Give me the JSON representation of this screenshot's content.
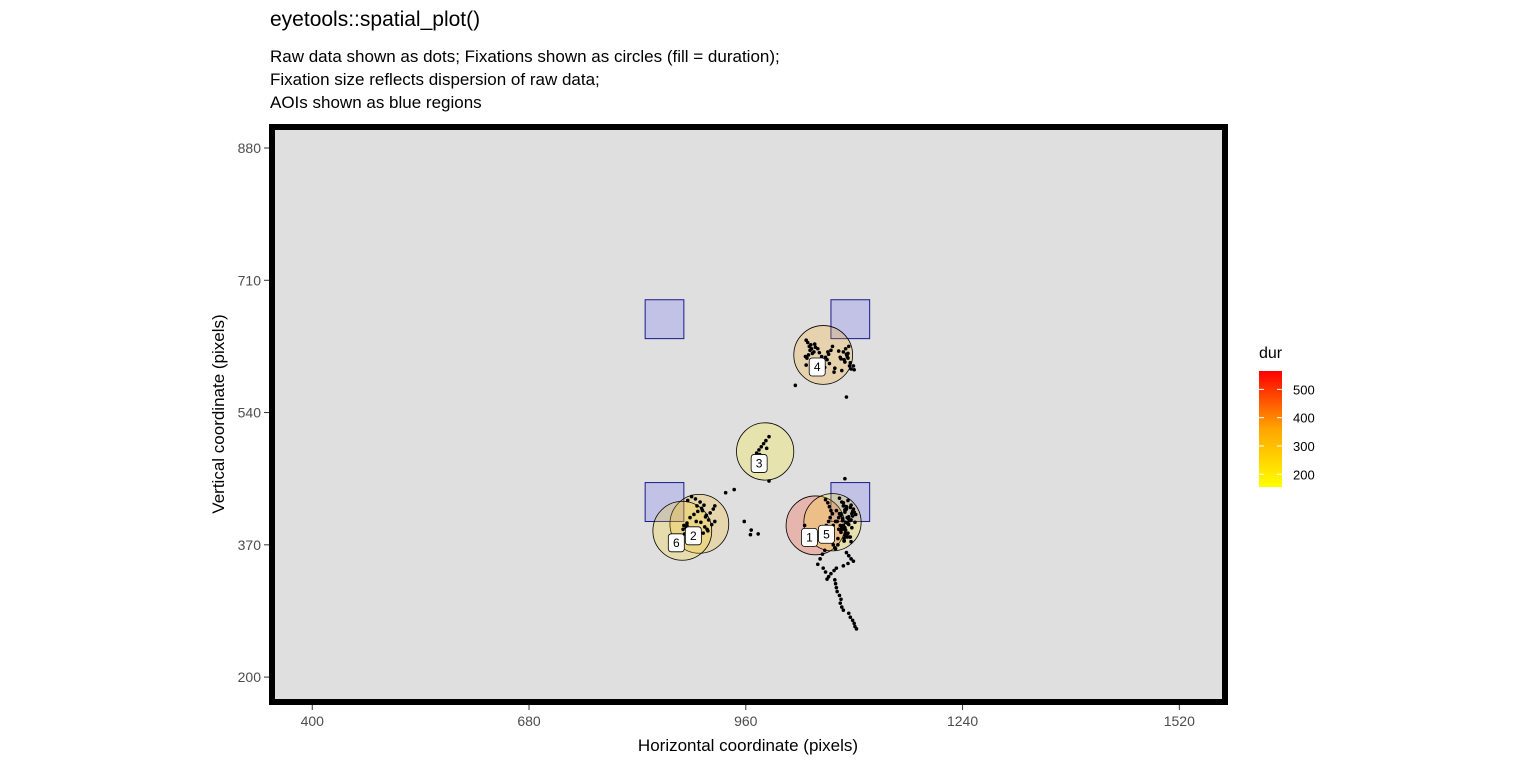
{
  "chart_data": {
    "type": "scatter",
    "title": "eyetools::spatial_plot()",
    "subtitle": [
      "Raw data shown as dots; Fixations shown as circles (fill = duration);",
      "Fixation size reflects dispersion of raw data;",
      "AOIs shown as blue regions"
    ],
    "xlabel": "Horizontal coordinate (pixels)",
    "ylabel": "Vertical coordinate (pixels)",
    "xlim": [
      348,
      1579
    ],
    "ylim": [
      168,
      907
    ],
    "xticks": [
      400,
      680,
      960,
      1240,
      1520
    ],
    "yticks": [
      200,
      370,
      540,
      710,
      880
    ],
    "grid": false,
    "legend": {
      "title": "dur",
      "position": "right",
      "type": "colorbar",
      "ticks": [
        200,
        300,
        400,
        500
      ],
      "range": [
        155,
        565
      ],
      "low_color": "#FFFF00",
      "high_color": "#FF0000"
    },
    "aois": [
      {
        "x": [
          830,
          880
        ],
        "y": [
          635,
          685
        ]
      },
      {
        "x": [
          1070,
          1120
        ],
        "y": [
          635,
          685
        ]
      },
      {
        "x": [
          830,
          880
        ],
        "y": [
          400,
          450
        ]
      },
      {
        "x": [
          1070,
          1120
        ],
        "y": [
          400,
          450
        ]
      }
    ],
    "fixations": [
      {
        "id": 1,
        "x": 1050,
        "y": 395,
        "radius": 38,
        "dur": 520
      },
      {
        "id": 2,
        "x": 900,
        "y": 397,
        "radius": 38,
        "dur": 320
      },
      {
        "id": 3,
        "x": 985,
        "y": 490,
        "radius": 37,
        "dur": 190
      },
      {
        "id": 4,
        "x": 1060,
        "y": 614,
        "radius": 38,
        "dur": 350
      },
      {
        "id": 5,
        "x": 1072,
        "y": 399,
        "radius": 37,
        "dur": 230
      },
      {
        "id": 6,
        "x": 878,
        "y": 388,
        "radius": 38,
        "dur": 260
      }
    ],
    "raw_points": {
      "x": [
        1040,
        1042,
        1045,
        1038,
        1044,
        1048,
        1041,
        1039,
        1046,
        1043,
        1050,
        1037,
        1052,
        1047,
        1049,
        1053,
        1055,
        1058,
        1060,
        1056,
        1062,
        1065,
        1063,
        1067,
        1070,
        1072,
        1068,
        1075,
        1074,
        1066,
        1090,
        1092,
        1088,
        1094,
        1091,
        1086,
        1089,
        1093,
        1095,
        1087,
        1099,
        1096,
        1084,
        1082,
        1080,
        1092,
        1083,
        1038,
        1044,
        1100,
        1083,
        1088,
        1090,
        1085,
        1095,
        1096,
        1097,
        1098,
        1093,
        1087,
        1089,
        1091,
        1100,
        1102,
        1094,
        1081,
        1077,
        1086,
        1092,
        1099,
        1091,
        1085,
        1086,
        1088,
        1093,
        1096,
        1098,
        1101,
        1097,
        1089,
        1092,
        1095,
        1087,
        1076,
        1073,
        1080,
        1083,
        1088,
        1091,
        1094,
        1096,
        1087,
        1079,
        1070,
        1082,
        1084,
        1086,
        1089,
        1093,
        1090,
        1063,
        1066,
        1068,
        1070,
        1072,
        1069,
        1067,
        1064,
        1061,
        1058,
        1065,
        1071,
        1073,
        1075,
        1062,
        1059,
        1056,
        1053,
        1060,
        1063,
        1081,
        1084,
        1086,
        1088,
        1083,
        1080,
        1078,
        1082,
        1085,
        1089,
        1091,
        1087,
        1079,
        1076,
        1090,
        1093,
        1096,
        1099,
        1092,
        1086,
        1077,
        1074,
        1070,
        1067,
        1065,
        1075,
        1076,
        1077,
        1078,
        1081,
        1083,
        1082,
        1084,
        1086,
        1093,
        1095,
        1098,
        1100,
        1101,
        1103,
        888,
        893,
        898,
        903,
        906,
        901,
        895,
        890,
        885,
        897,
        904,
        909,
        912,
        916,
        910,
        905,
        899,
        894,
        889,
        884,
        896,
        908,
        914,
        918,
        920,
        902,
        907,
        911,
        900,
        887,
        873,
        877,
        881,
        885,
        879,
        883,
        871,
        875,
        880,
        884,
        974,
        977,
        980,
        983,
        986,
        978,
        982,
        975,
        971,
        987,
        990,
        1024,
        1088,
        1090,
        958,
        1036,
        966,
        934,
        945,
        967,
        976,
        990,
        920
      ],
      "y": [
        630,
        625,
        622,
        633,
        627,
        618,
        614,
        610,
        616,
        620,
        624,
        612,
        607,
        603,
        628,
        622,
        617,
        612,
        605,
        600,
        598,
        608,
        611,
        615,
        620,
        625,
        603,
        597,
        592,
        618,
        615,
        610,
        605,
        600,
        612,
        618,
        622,
        625,
        604,
        608,
        600,
        596,
        594,
        611,
        619,
        616,
        609,
        601,
        603,
        595,
        408,
        412,
        416,
        404,
        418,
        421,
        410,
        413,
        406,
        420,
        415,
        405,
        412,
        409,
        401,
        410,
        414,
        424,
        427,
        416,
        398,
        401,
        395,
        392,
        396,
        402,
        407,
        399,
        392,
        389,
        385,
        380,
        378,
        400,
        395,
        390,
        386,
        382,
        384,
        380,
        374,
        375,
        378,
        383,
        389,
        392,
        395,
        399,
        403,
        419,
        428,
        424,
        419,
        414,
        410,
        405,
        400,
        395,
        390,
        387,
        381,
        375,
        370,
        366,
        363,
        358,
        352,
        345,
        340,
        335,
        430,
        425,
        420,
        415,
        410,
        405,
        400,
        395,
        390,
        385,
        380,
        375,
        370,
        365,
        360,
        356,
        352,
        349,
        346,
        343,
        340,
        337,
        333,
        329,
        326,
        325,
        320,
        315,
        310,
        305,
        300,
        295,
        290,
        286,
        282,
        277,
        273,
        269,
        265,
        262,
        405,
        409,
        413,
        417,
        421,
        425,
        429,
        432,
        427,
        420,
        414,
        408,
        402,
        396,
        390,
        385,
        380,
        385,
        390,
        395,
        400,
        406,
        411,
        416,
        420,
        399,
        393,
        388,
        383,
        378,
        378,
        381,
        384,
        387,
        390,
        392,
        376,
        373,
        395,
        398,
        488,
        492,
        496,
        500,
        504,
        486,
        483,
        480,
        478,
        494,
        509,
        575,
        455,
        560,
        400,
        395,
        383,
        437,
        441,
        389,
        384,
        452,
        400
      ]
    }
  }
}
